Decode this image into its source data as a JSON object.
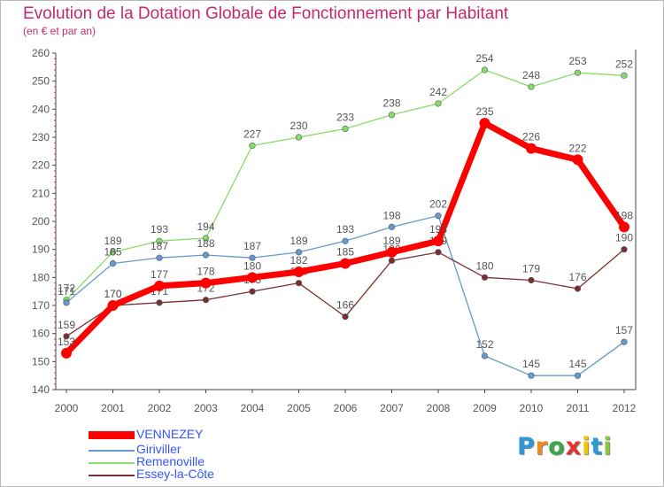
{
  "title": "Evolution de la Dotation Globale de Fonctionnement par Habitant",
  "subtitle": "(en € et par an)",
  "chart_data": {
    "type": "line",
    "title": "Evolution de la Dotation Globale de Fonctionnement par Habitant",
    "subtitle": "(en € et par an)",
    "xlabel": "",
    "ylabel": "",
    "x": [
      "2000",
      "2001",
      "2002",
      "2003",
      "2004",
      "2005",
      "2006",
      "2007",
      "2008",
      "2009",
      "2010",
      "2011",
      "2012"
    ],
    "ylim": [
      140,
      260
    ],
    "yticks": [
      140,
      150,
      160,
      170,
      180,
      190,
      200,
      210,
      220,
      230,
      240,
      250,
      260
    ],
    "grid": false,
    "legend_position": "bottom-left",
    "series": [
      {
        "name": "VENNEZEY",
        "color": "#ff0000",
        "values": [
          153,
          170,
          177,
          178,
          180,
          182,
          185,
          189,
          193,
          235,
          226,
          222,
          198
        ]
      },
      {
        "name": "Giriviller",
        "color": "#6699cc",
        "values": [
          171,
          185,
          187,
          188,
          187,
          189,
          193,
          198,
          202,
          152,
          145,
          145,
          157
        ]
      },
      {
        "name": "Remenoville",
        "color": "#88dd66",
        "values": [
          172,
          189,
          193,
          194,
          227,
          230,
          233,
          238,
          242,
          254,
          248,
          253,
          252
        ]
      },
      {
        "name": "Essey-la-Côte",
        "color": "#7a3030",
        "values": [
          159,
          170,
          171,
          172,
          175,
          178,
          166,
          186,
          189,
          180,
          179,
          176,
          190
        ]
      }
    ]
  },
  "logo": {
    "letters": [
      "P",
      "r",
      "o",
      "x",
      "i",
      "t",
      "i"
    ],
    "colors": [
      "#2b9bd8",
      "#f08a1c",
      "#3aa84a",
      "#e8322a",
      "#f2c500",
      "#2b9bd8",
      "#8cc63f"
    ]
  }
}
